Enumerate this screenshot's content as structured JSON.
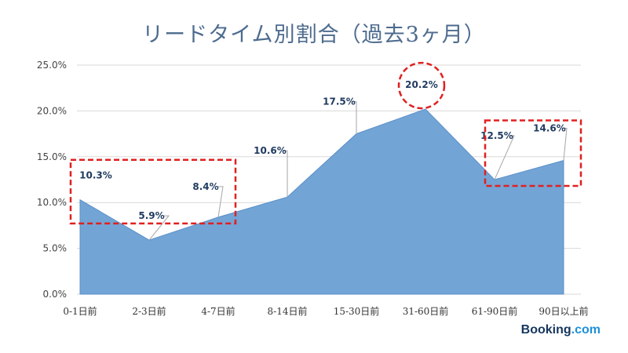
{
  "colors": {
    "area_fill": "#72a5d6",
    "area_stroke": "#5b8fc7",
    "highlight": "#e02020",
    "title": "#4d6b8e",
    "label": "#1f3a5f"
  },
  "logo": {
    "brand": "Booking",
    "suffix": ".com"
  },
  "chart_data": {
    "type": "area",
    "title": "リードタイム別割合（過去3ヶ月）",
    "xlabel": "",
    "ylabel": "",
    "categories": [
      "0-1日前",
      "2-3日前",
      "4-7日前",
      "8-14日前",
      "15-30日前",
      "31-60日前",
      "61-90日前",
      "90日以上前"
    ],
    "values": [
      10.3,
      5.9,
      8.4,
      10.6,
      17.5,
      20.2,
      12.5,
      14.6
    ],
    "value_labels": [
      "10.3%",
      "5.9%",
      "8.4%",
      "10.6%",
      "17.5%",
      "20.2%",
      "12.5%",
      "14.6%"
    ],
    "y_ticks": [
      0,
      5,
      10,
      15,
      20,
      25
    ],
    "y_tick_labels": [
      "0.0%",
      "5.0%",
      "10.0%",
      "15.0%",
      "20.0%",
      "25.0%"
    ],
    "ylim": [
      0,
      25
    ],
    "grid": true,
    "legend": "none",
    "highlights": [
      {
        "shape": "rect",
        "categories": [
          "0-1日前",
          "4-7日前"
        ]
      },
      {
        "shape": "circle",
        "categories": [
          "31-60日前"
        ]
      },
      {
        "shape": "rect",
        "categories": [
          "61-90日前",
          "90日以上前"
        ]
      }
    ]
  }
}
